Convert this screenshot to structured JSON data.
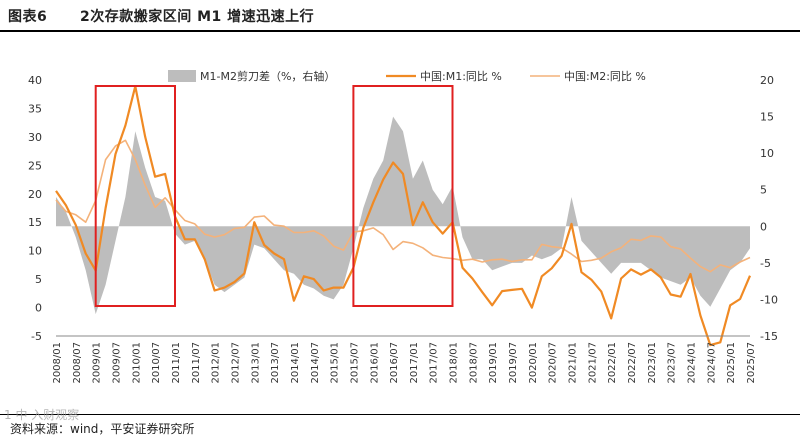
{
  "header": {
    "figure_label": "图表6",
    "title": "2次存款搬家区间 M1 增速迅速上行"
  },
  "source": "资料来源：wind，平安证券研究所",
  "watermark": "1 中 入财观察",
  "colors": {
    "m1": "#F08A24",
    "m2": "#F4B27A",
    "spread": "#BDBDBD",
    "highlight": "#E02020"
  },
  "chart_data": {
    "type": "line",
    "legend": [
      "M1-M2剪刀差（%，右轴）",
      "中国:M1:同比 %",
      "中国:M2:同比 %"
    ],
    "x_tick_labels": [
      "2008/01",
      "2008/07",
      "2009/01",
      "2009/07",
      "2010/01",
      "2010/07",
      "2011/01",
      "2011/07",
      "2012/01",
      "2012/07",
      "2013/01",
      "2013/07",
      "2014/01",
      "2014/07",
      "2015/01",
      "2015/07",
      "2016/01",
      "2016/07",
      "2017/01",
      "2017/07",
      "2018/01",
      "2018/07",
      "2019/01",
      "2019/07",
      "2020/01",
      "2020/07",
      "2021/01",
      "2021/07",
      "2022/01",
      "2022/07",
      "2023/01",
      "2023/07",
      "2024/01",
      "2024/07",
      "2025/01",
      "2025/07"
    ],
    "ylim_left": [
      -5,
      40
    ],
    "yticks_left": [
      -5,
      0,
      5,
      10,
      15,
      20,
      25,
      30,
      35,
      40
    ],
    "ylim_right": [
      -15,
      20
    ],
    "yticks_right": [
      -15,
      -10,
      -5,
      0,
      5,
      10,
      15,
      20
    ],
    "highlight_ranges": [
      [
        "2009/01",
        "2011/01"
      ],
      [
        "2015/07",
        "2018/01"
      ]
    ],
    "series": [
      {
        "name": "M1-M2剪刀差（%，右轴）",
        "axis": "right",
        "type": "area",
        "points": [
          [
            "2008/01",
            4.0
          ],
          [
            "2008/04",
            2.0
          ],
          [
            "2008/07",
            -1.5
          ],
          [
            "2008/10",
            -6.0
          ],
          [
            "2009/01",
            -12.0
          ],
          [
            "2009/04",
            -8.0
          ],
          [
            "2009/07",
            -2.0
          ],
          [
            "2009/10",
            4.0
          ],
          [
            "2010/01",
            13.0
          ],
          [
            "2010/04",
            8.0
          ],
          [
            "2010/07",
            4.0
          ],
          [
            "2010/10",
            3.5
          ],
          [
            "2011/01",
            -1.0
          ],
          [
            "2011/04",
            -2.5
          ],
          [
            "2011/07",
            -2.0
          ],
          [
            "2011/10",
            -4.5
          ],
          [
            "2012/01",
            -8.0
          ],
          [
            "2012/04",
            -9.0
          ],
          [
            "2012/07",
            -8.0
          ],
          [
            "2012/10",
            -7.0
          ],
          [
            "2013/01",
            -2.5
          ],
          [
            "2013/04",
            -3.0
          ],
          [
            "2013/07",
            -4.5
          ],
          [
            "2013/10",
            -6.0
          ],
          [
            "2014/01",
            -6.5
          ],
          [
            "2014/04",
            -8.0
          ],
          [
            "2014/07",
            -8.5
          ],
          [
            "2014/10",
            -9.5
          ],
          [
            "2015/01",
            -10.0
          ],
          [
            "2015/04",
            -8.0
          ],
          [
            "2015/07",
            -3.0
          ],
          [
            "2015/10",
            2.5
          ],
          [
            "2016/01",
            6.5
          ],
          [
            "2016/04",
            9.0
          ],
          [
            "2016/07",
            15.0
          ],
          [
            "2016/10",
            13.0
          ],
          [
            "2017/01",
            6.5
          ],
          [
            "2017/04",
            9.0
          ],
          [
            "2017/07",
            5.0
          ],
          [
            "2017/10",
            3.0
          ],
          [
            "2018/01",
            5.5
          ],
          [
            "2018/04",
            -1.5
          ],
          [
            "2018/07",
            -4.5
          ],
          [
            "2018/10",
            -4.5
          ],
          [
            "2019/01",
            -6.0
          ],
          [
            "2019/04",
            -5.5
          ],
          [
            "2019/07",
            -5.0
          ],
          [
            "2019/10",
            -5.0
          ],
          [
            "2020/01",
            -4.0
          ],
          [
            "2020/04",
            -4.5
          ],
          [
            "2020/07",
            -4.0
          ],
          [
            "2020/10",
            -3.0
          ],
          [
            "2021/01",
            4.0
          ],
          [
            "2021/04",
            -2.0
          ],
          [
            "2021/07",
            -3.5
          ],
          [
            "2021/10",
            -5.0
          ],
          [
            "2022/01",
            -6.5
          ],
          [
            "2022/04",
            -5.0
          ],
          [
            "2022/07",
            -5.0
          ],
          [
            "2022/10",
            -5.0
          ],
          [
            "2023/01",
            -6.0
          ],
          [
            "2023/04",
            -7.0
          ],
          [
            "2023/07",
            -7.5
          ],
          [
            "2023/10",
            -8.0
          ],
          [
            "2024/01",
            -7.0
          ],
          [
            "2024/04",
            -9.5
          ],
          [
            "2024/07",
            -11.0
          ],
          [
            "2024/10",
            -8.5
          ],
          [
            "2025/01",
            -6.0
          ],
          [
            "2025/04",
            -5.0
          ],
          [
            "2025/07",
            -3.0
          ]
        ]
      },
      {
        "name": "中国:M1:同比 %",
        "axis": "left",
        "type": "line",
        "points": [
          [
            "2008/01",
            20.5
          ],
          [
            "2008/04",
            18.0
          ],
          [
            "2008/07",
            14.5
          ],
          [
            "2008/10",
            9.5
          ],
          [
            "2009/01",
            6.5
          ],
          [
            "2009/04",
            17.5
          ],
          [
            "2009/07",
            27.0
          ],
          [
            "2009/10",
            32.0
          ],
          [
            "2010/01",
            38.9
          ],
          [
            "2010/04",
            30.0
          ],
          [
            "2010/07",
            23.0
          ],
          [
            "2010/10",
            23.5
          ],
          [
            "2011/01",
            16.0
          ],
          [
            "2011/04",
            12.0
          ],
          [
            "2011/07",
            12.0
          ],
          [
            "2011/10",
            8.5
          ],
          [
            "2012/01",
            3.0
          ],
          [
            "2012/04",
            3.5
          ],
          [
            "2012/07",
            4.5
          ],
          [
            "2012/10",
            6.0
          ],
          [
            "2013/01",
            15.0
          ],
          [
            "2013/04",
            11.0
          ],
          [
            "2013/07",
            9.5
          ],
          [
            "2013/10",
            8.5
          ],
          [
            "2014/01",
            1.2
          ],
          [
            "2014/04",
            5.5
          ],
          [
            "2014/07",
            5.0
          ],
          [
            "2014/10",
            3.0
          ],
          [
            "2015/01",
            3.5
          ],
          [
            "2015/04",
            3.5
          ],
          [
            "2015/07",
            7.0
          ],
          [
            "2015/10",
            14.0
          ],
          [
            "2016/01",
            18.5
          ],
          [
            "2016/04",
            22.5
          ],
          [
            "2016/07",
            25.5
          ],
          [
            "2016/10",
            23.5
          ],
          [
            "2017/01",
            14.5
          ],
          [
            "2017/04",
            18.5
          ],
          [
            "2017/07",
            15.0
          ],
          [
            "2017/10",
            13.0
          ],
          [
            "2018/01",
            15.0
          ],
          [
            "2018/04",
            7.0
          ],
          [
            "2018/07",
            5.1
          ],
          [
            "2018/10",
            2.7
          ],
          [
            "2019/01",
            0.4
          ],
          [
            "2019/04",
            2.9
          ],
          [
            "2019/07",
            3.1
          ],
          [
            "2019/10",
            3.3
          ],
          [
            "2020/01",
            0.0
          ],
          [
            "2020/04",
            5.5
          ],
          [
            "2020/07",
            6.9
          ],
          [
            "2020/10",
            9.1
          ],
          [
            "2021/01",
            14.7
          ],
          [
            "2021/04",
            6.2
          ],
          [
            "2021/07",
            4.9
          ],
          [
            "2021/10",
            2.8
          ],
          [
            "2022/01",
            -1.9
          ],
          [
            "2022/04",
            5.1
          ],
          [
            "2022/07",
            6.7
          ],
          [
            "2022/10",
            5.8
          ],
          [
            "2023/01",
            6.7
          ],
          [
            "2023/04",
            5.3
          ],
          [
            "2023/07",
            2.3
          ],
          [
            "2023/10",
            1.9
          ],
          [
            "2024/01",
            5.9
          ],
          [
            "2024/04",
            -1.4
          ],
          [
            "2024/07",
            -6.6
          ],
          [
            "2024/10",
            -6.1
          ],
          [
            "2025/01",
            0.4
          ],
          [
            "2025/04",
            1.5
          ],
          [
            "2025/07",
            5.6
          ]
        ]
      },
      {
        "name": "中国:M2:同比 %",
        "axis": "left",
        "type": "line",
        "points": [
          [
            "2008/01",
            18.9
          ],
          [
            "2008/04",
            16.9
          ],
          [
            "2008/07",
            16.3
          ],
          [
            "2008/10",
            15.0
          ],
          [
            "2009/01",
            18.8
          ],
          [
            "2009/04",
            26.0
          ],
          [
            "2009/07",
            28.4
          ],
          [
            "2009/10",
            29.4
          ],
          [
            "2010/01",
            26.0
          ],
          [
            "2010/04",
            21.5
          ],
          [
            "2010/07",
            17.6
          ],
          [
            "2010/10",
            19.3
          ],
          [
            "2011/01",
            17.2
          ],
          [
            "2011/04",
            15.3
          ],
          [
            "2011/07",
            14.7
          ],
          [
            "2011/10",
            12.9
          ],
          [
            "2012/01",
            12.4
          ],
          [
            "2012/04",
            12.8
          ],
          [
            "2012/07",
            13.9
          ],
          [
            "2012/10",
            14.1
          ],
          [
            "2013/01",
            15.9
          ],
          [
            "2013/04",
            16.1
          ],
          [
            "2013/07",
            14.5
          ],
          [
            "2013/10",
            14.3
          ],
          [
            "2014/01",
            13.2
          ],
          [
            "2014/04",
            13.2
          ],
          [
            "2014/07",
            13.5
          ],
          [
            "2014/10",
            12.6
          ],
          [
            "2015/01",
            10.8
          ],
          [
            "2015/04",
            10.1
          ],
          [
            "2015/07",
            13.3
          ],
          [
            "2015/10",
            13.5
          ],
          [
            "2016/01",
            14.0
          ],
          [
            "2016/04",
            12.8
          ],
          [
            "2016/07",
            10.2
          ],
          [
            "2016/10",
            11.6
          ],
          [
            "2017/01",
            11.3
          ],
          [
            "2017/04",
            10.5
          ],
          [
            "2017/07",
            9.2
          ],
          [
            "2017/10",
            8.8
          ],
          [
            "2018/01",
            8.6
          ],
          [
            "2018/04",
            8.3
          ],
          [
            "2018/07",
            8.5
          ],
          [
            "2018/10",
            8.0
          ],
          [
            "2019/01",
            8.4
          ],
          [
            "2019/04",
            8.5
          ],
          [
            "2019/07",
            8.1
          ],
          [
            "2019/10",
            8.4
          ],
          [
            "2020/01",
            8.4
          ],
          [
            "2020/04",
            11.1
          ],
          [
            "2020/07",
            10.7
          ],
          [
            "2020/10",
            10.5
          ],
          [
            "2021/01",
            9.4
          ],
          [
            "2021/04",
            8.1
          ],
          [
            "2021/07",
            8.3
          ],
          [
            "2021/10",
            8.7
          ],
          [
            "2022/01",
            9.8
          ],
          [
            "2022/04",
            10.5
          ],
          [
            "2022/07",
            12.0
          ],
          [
            "2022/10",
            11.8
          ],
          [
            "2023/01",
            12.6
          ],
          [
            "2023/04",
            12.4
          ],
          [
            "2023/07",
            10.7
          ],
          [
            "2023/10",
            10.3
          ],
          [
            "2024/01",
            8.7
          ],
          [
            "2024/04",
            7.2
          ],
          [
            "2024/07",
            6.3
          ],
          [
            "2024/10",
            7.5
          ],
          [
            "2025/01",
            7.0
          ],
          [
            "2025/04",
            8.0
          ],
          [
            "2025/07",
            8.8
          ]
        ]
      }
    ]
  }
}
